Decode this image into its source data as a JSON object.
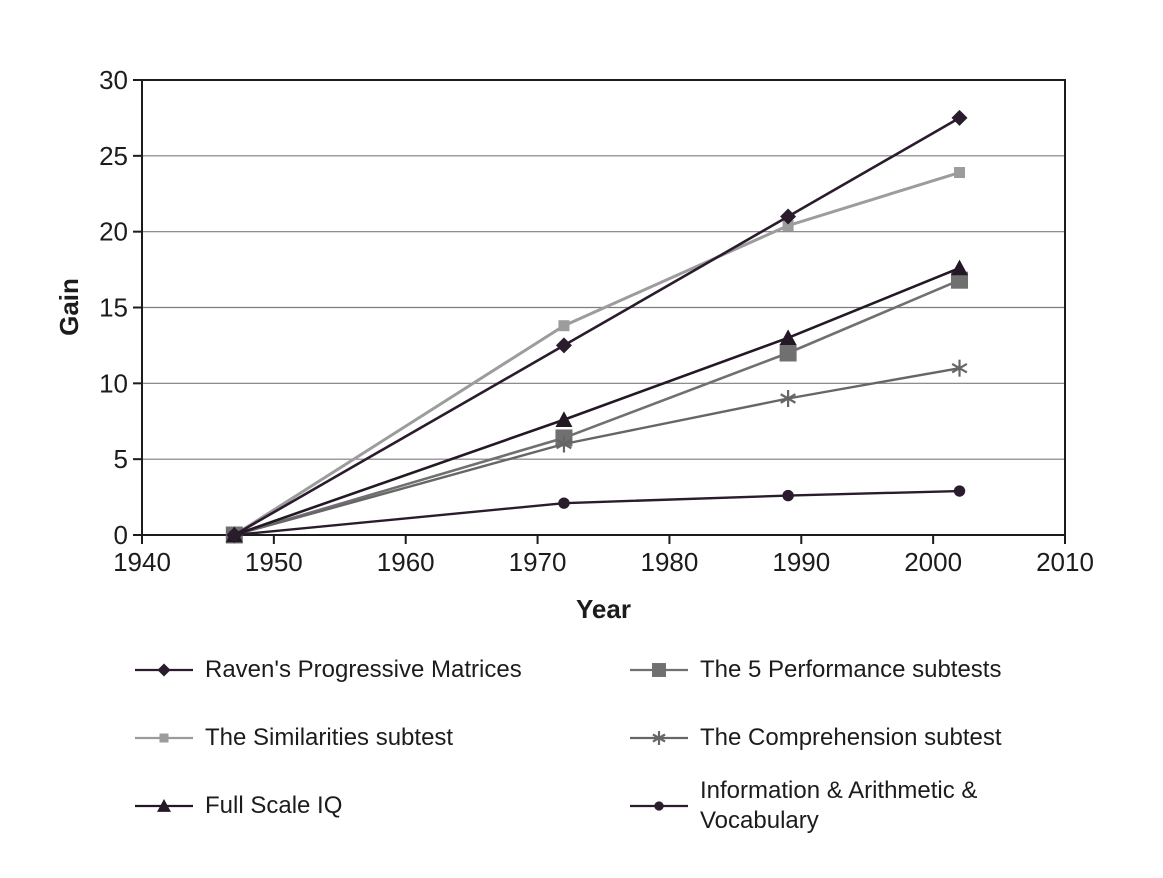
{
  "figure": {
    "background": "#ffffff",
    "text_color": "#1c1c1c",
    "axis_color": "#1c1c1c",
    "gridline_color": "#7d7d7d"
  },
  "chart_data": {
    "type": "line",
    "title": "",
    "xlabel": "Year",
    "ylabel": "Gain",
    "xlim": [
      1940,
      2010
    ],
    "ylim": [
      0,
      30
    ],
    "x_ticks": [
      1940,
      1950,
      1960,
      1970,
      1980,
      1990,
      2000,
      2010
    ],
    "y_ticks": [
      0,
      5,
      10,
      15,
      20,
      25,
      30
    ],
    "grid": "horizontal",
    "legend_position": "bottom-two-columns",
    "x": [
      1947,
      1972,
      1989,
      2002
    ],
    "series": [
      {
        "name": "Raven's Progressive Matrices",
        "marker": "diamond",
        "color": "#2a1c2c",
        "line_width": 2.6,
        "values": [
          0,
          12.5,
          21.0,
          27.5
        ]
      },
      {
        "name": "The 5 Performance subtests",
        "marker": "square-large",
        "color": "#707070",
        "line_width": 2.6,
        "values": [
          0,
          6.4,
          12.0,
          16.8
        ]
      },
      {
        "name": "The Similarities subtest",
        "marker": "square-small",
        "color": "#9c9c9c",
        "line_width": 3.0,
        "values": [
          0,
          13.8,
          20.4,
          23.9
        ]
      },
      {
        "name": "The Comprehension subtest",
        "marker": "asterisk",
        "color": "#666666",
        "line_width": 2.4,
        "values": [
          0,
          6.0,
          9.0,
          11.0
        ]
      },
      {
        "name": "Full Scale IQ",
        "marker": "triangle",
        "color": "#241826",
        "line_width": 2.6,
        "values": [
          0,
          7.6,
          13.0,
          17.6
        ]
      },
      {
        "name": "Information & Arithmetic & Vocabulary",
        "marker": "circle",
        "color": "#2a1c2c",
        "line_width": 2.4,
        "values": [
          0,
          2.1,
          2.6,
          2.9
        ]
      }
    ],
    "z_order": [
      2,
      1,
      3,
      0,
      4,
      5
    ]
  }
}
